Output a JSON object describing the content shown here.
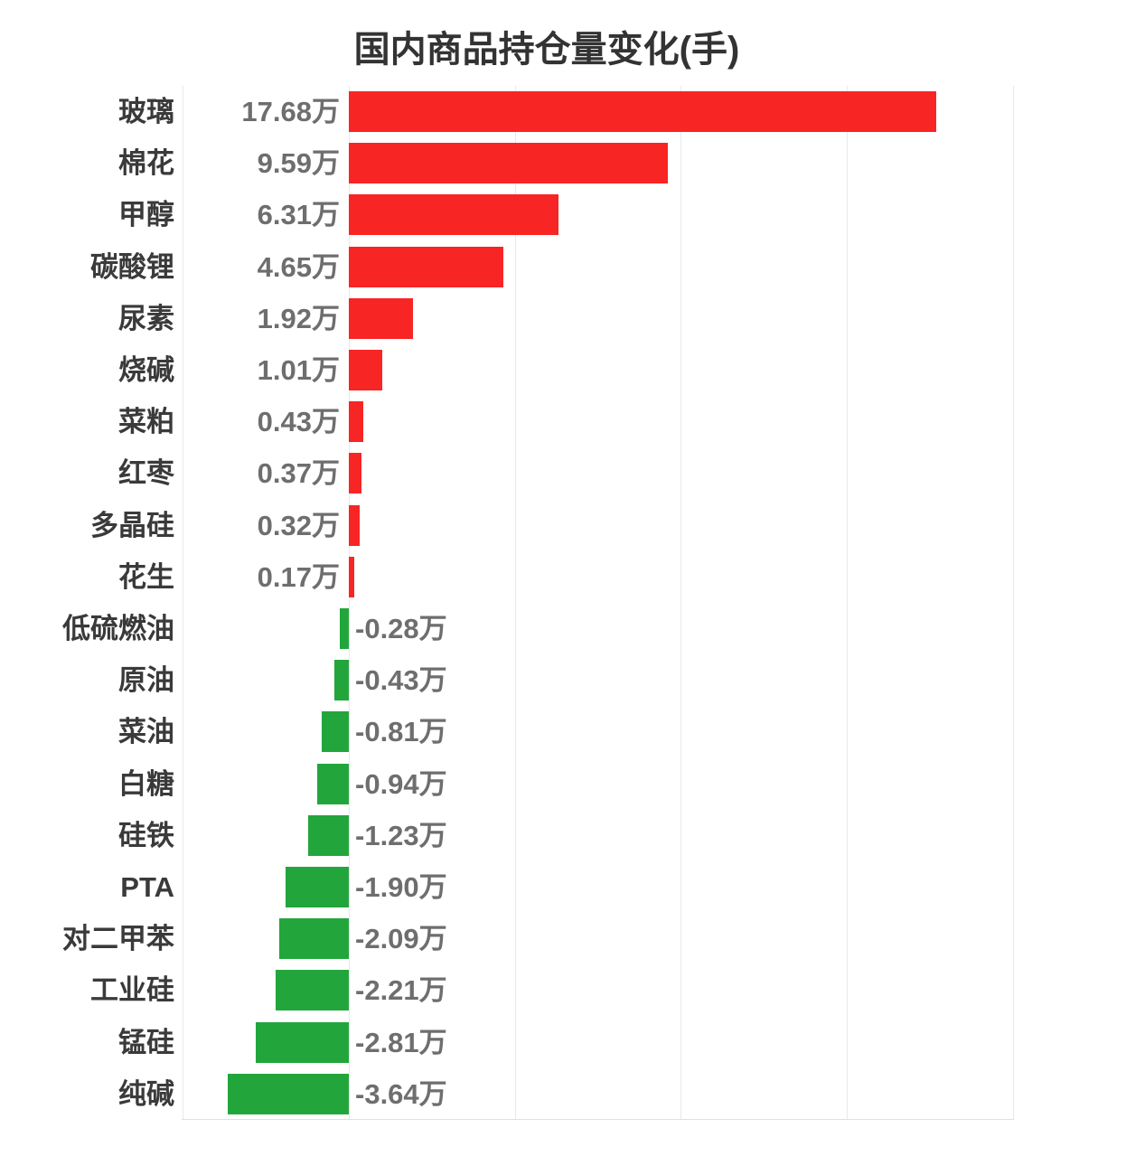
{
  "chart_data": {
    "type": "bar",
    "orientation": "horizontal",
    "title": "国内商品持仓量变化(手)",
    "unit": "万",
    "categories": [
      "玻璃",
      "棉花",
      "甲醇",
      "碳酸锂",
      "尿素",
      "烧碱",
      "菜粕",
      "红枣",
      "多晶硅",
      "花生",
      "低硫燃油",
      "原油",
      "菜油",
      "白糖",
      "硅铁",
      "PTA",
      "对二甲苯",
      "工业硅",
      "锰硅",
      "纯碱"
    ],
    "values": [
      17.68,
      9.59,
      6.31,
      4.65,
      1.92,
      1.01,
      0.43,
      0.37,
      0.32,
      0.17,
      -0.28,
      -0.43,
      -0.81,
      -0.94,
      -1.23,
      -1.9,
      -2.09,
      -2.21,
      -2.81,
      -3.64
    ],
    "value_labels": [
      "17.68万",
      "9.59万",
      "6.31万",
      "4.65万",
      "1.92万",
      "1.01万",
      "0.43万",
      "0.37万",
      "0.32万",
      "0.17万",
      "-0.28万",
      "-0.43万",
      "-0.81万",
      "-0.94万",
      "-1.23万",
      "-1.90万",
      "-2.09万",
      "-2.21万",
      "-2.81万",
      "-3.64万"
    ],
    "xlim": [
      -5,
      20
    ],
    "grid_step": 5,
    "grid": true,
    "legend": false,
    "colors": {
      "positive": "#f82525",
      "negative": "#22a63c",
      "title_text": "#333333",
      "category_text": "#3a3a3a",
      "value_text": "#6e6e6e",
      "gridline": "#e9e9e9"
    }
  }
}
